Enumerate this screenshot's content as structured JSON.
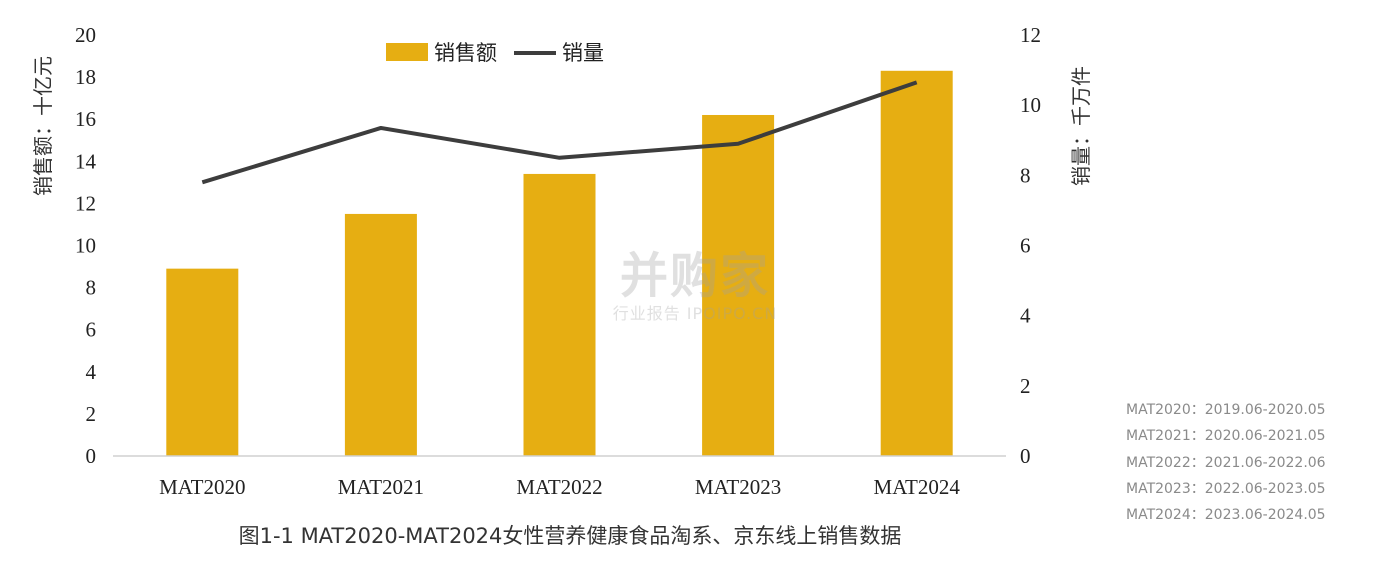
{
  "chart_data": {
    "type": "bar+line",
    "categories": [
      "MAT2020",
      "MAT2021",
      "MAT2022",
      "MAT2023",
      "MAT2024"
    ],
    "series": [
      {
        "name": "销售额",
        "type": "bar",
        "axis": "left",
        "values": [
          8.9,
          11.5,
          13.4,
          16.2,
          18.3
        ],
        "color": "#E6AE12"
      },
      {
        "name": "销量",
        "type": "line",
        "axis": "right",
        "values": [
          7.8,
          9.35,
          8.5,
          8.9,
          10.65
        ],
        "color": "#3d3d3d"
      }
    ],
    "y_left": {
      "label": "销售额：十亿元",
      "ticks": [
        "0",
        "2",
        "4",
        "6",
        "8",
        "10",
        "12",
        "14",
        "16",
        "18",
        "20"
      ],
      "range": [
        0,
        20
      ]
    },
    "y_right": {
      "label": "销量：千万件",
      "ticks": [
        "0",
        "2",
        "4",
        "6",
        "8",
        "10",
        "12"
      ],
      "range": [
        0,
        12
      ]
    },
    "legend": {
      "position": "top-center"
    },
    "grid": false
  },
  "notes": [
    "MAT2020：2019.06-2020.05",
    "MAT2021：2020.06-2021.05",
    "MAT2022：2021.06-2022.06",
    "MAT2023：2022.06-2023.05",
    "MAT2024：2023.06-2024.05"
  ],
  "caption": "图1-1  MAT2020-MAT2024女性营养健康食品淘系、京东线上销售数据",
  "watermark": {
    "logo": "并购家",
    "sub": "行业报告 IPOIPO.CN"
  }
}
